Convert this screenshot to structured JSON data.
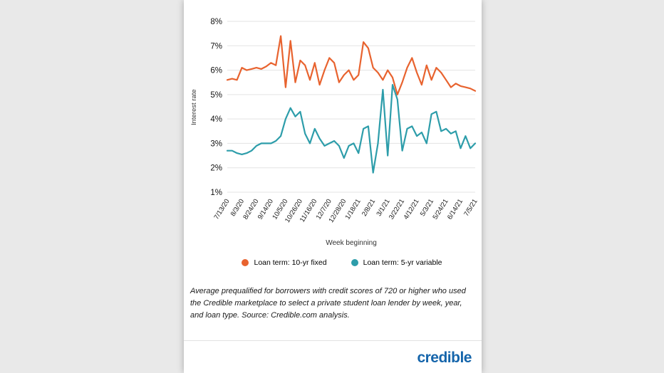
{
  "page": {
    "background_color": "#e9e9e9",
    "card_background_color": "#ffffff"
  },
  "chart_data": {
    "type": "line",
    "title": "",
    "xlabel": "Week beginning",
    "ylabel": "Interest rate",
    "ylim": [
      1,
      8
    ],
    "y_tick_suffix": "%",
    "grid": true,
    "legend_position": "bottom",
    "x_tick_label_every": 3,
    "x": [
      "7/13/20",
      "7/20/20",
      "7/27/20",
      "8/3/20",
      "8/10/20",
      "8/17/20",
      "8/24/20",
      "8/31/20",
      "9/7/20",
      "9/14/20",
      "9/21/20",
      "9/28/20",
      "10/5/20",
      "10/12/20",
      "10/19/20",
      "10/26/20",
      "11/2/20",
      "11/9/20",
      "11/16/20",
      "11/23/20",
      "11/30/20",
      "12/7/20",
      "12/14/20",
      "12/21/20",
      "12/28/20",
      "1/4/21",
      "1/11/21",
      "1/18/21",
      "1/25/21",
      "2/1/21",
      "2/8/21",
      "2/15/21",
      "2/22/21",
      "3/1/21",
      "3/8/21",
      "3/15/21",
      "3/22/21",
      "3/29/21",
      "4/5/21",
      "4/12/21",
      "4/19/21",
      "4/26/21",
      "5/3/21",
      "5/10/21",
      "5/17/21",
      "5/24/21",
      "5/31/21",
      "6/7/21",
      "6/14/21",
      "6/21/21",
      "6/28/21",
      "7/5/21"
    ],
    "x_tick_labels": [
      "7/13/20",
      "8/3/20",
      "8/24/20",
      "9/14/20",
      "10/5/20",
      "10/26/20",
      "11/16/20",
      "12/7/20",
      "12/28/20",
      "1/18/21",
      "2/8/21",
      "3/1/21",
      "3/22/21",
      "4/12/21",
      "5/3/21",
      "5/24/21",
      "6/14/21",
      "7/5/21"
    ],
    "series": [
      {
        "name": "Loan term: 10-yr fixed",
        "color": "#e8632f",
        "values": [
          5.6,
          5.65,
          5.6,
          6.1,
          6.0,
          6.05,
          6.1,
          6.05,
          6.15,
          6.3,
          6.2,
          7.4,
          5.3,
          7.2,
          5.5,
          6.4,
          6.2,
          5.6,
          6.3,
          5.4,
          6.0,
          6.5,
          6.3,
          5.5,
          5.8,
          6.0,
          5.6,
          5.8,
          7.15,
          6.9,
          6.1,
          5.9,
          5.6,
          6.0,
          5.7,
          5.0,
          5.5,
          6.1,
          6.5,
          5.9,
          5.4,
          6.2,
          5.6,
          6.1,
          5.9,
          5.6,
          5.3,
          5.45,
          5.35,
          5.3,
          5.25,
          5.15
        ]
      },
      {
        "name": "Loan term: 5-yr variable",
        "color": "#2d9daa",
        "values": [
          2.7,
          2.7,
          2.6,
          2.55,
          2.6,
          2.7,
          2.9,
          3.0,
          3.0,
          3.0,
          3.1,
          3.3,
          4.0,
          4.45,
          4.1,
          4.3,
          3.4,
          3.0,
          3.6,
          3.2,
          2.9,
          3.0,
          3.1,
          2.9,
          2.4,
          2.9,
          3.0,
          2.6,
          3.6,
          3.7,
          1.8,
          3.0,
          5.2,
          2.5,
          5.4,
          4.8,
          2.7,
          3.6,
          3.7,
          3.3,
          3.45,
          3.0,
          4.2,
          4.3,
          3.5,
          3.6,
          3.4,
          3.5,
          2.8,
          3.3,
          2.8,
          3.0
        ]
      }
    ]
  },
  "footnote": "Average prequalified for borrowers with credit scores of 720 or higher who used the Credible marketplace to select a private student loan lender by week, year, and loan type. Source: Credible.com analysis.",
  "brand": "credible"
}
